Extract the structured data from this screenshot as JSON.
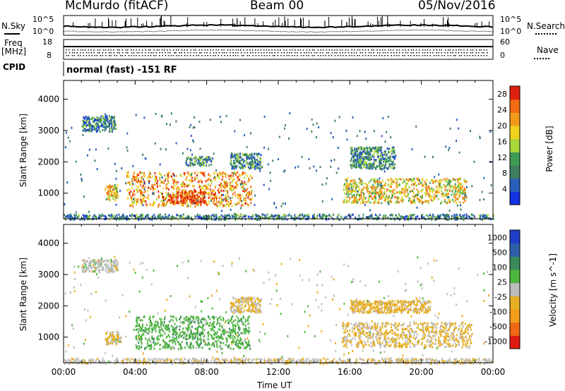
{
  "header": {
    "station": "McMurdo (fitACF)",
    "beam": "Beam 00",
    "date": "05/Nov/2016"
  },
  "top_panels": {
    "nsky_label": "N.Sky",
    "nsearch_label": "N.Search",
    "noise_ticks_left": [
      "10^5",
      "10^0"
    ],
    "noise_ticks_right": [
      "10^5",
      "10^0"
    ],
    "freq_label_line1": "Freq",
    "freq_label_line2": "[MHz]",
    "freq_ticks": [
      "18",
      "8"
    ],
    "nave_label": "Nave",
    "nave_ticks": [
      "60",
      "0"
    ],
    "cpid_label": "CPID",
    "cpid_text": "normal (fast) -151 RF"
  },
  "colors": {
    "power": [
      "#1432e6",
      "#2a5fbd",
      "#3f7f62",
      "#3f9c55",
      "#a9d83b",
      "#f0d21e",
      "#f2991a",
      "#f26a12",
      "#e0200e"
    ],
    "velocity": [
      "#e01b12",
      "#f06812",
      "#f39b1a",
      "#e6ae22",
      "#bdbdbd",
      "#4fb63f",
      "#3a8b5a",
      "#2f5fa8",
      "#1f3fc8"
    ]
  },
  "chart_data": [
    {
      "type": "heatmap",
      "title": "",
      "xlabel": "Time UT",
      "ylabel": "Slant Range [km]",
      "xticks": [
        "00:00",
        "04:00",
        "08:00",
        "12:00",
        "16:00",
        "20:00",
        "00:00"
      ],
      "yticks": [
        "1000",
        "2000",
        "3000",
        "4000"
      ],
      "xlim_hours": [
        0,
        24
      ],
      "ylim_km": [
        180,
        4600
      ],
      "colorbar": {
        "label": "Power [dB]",
        "ticks": [
          "4",
          "8",
          "12",
          "16",
          "20",
          "24",
          "28"
        ],
        "range": [
          0,
          30
        ]
      },
      "echo_regions": [
        {
          "t0": 2.3,
          "t1": 3.0,
          "r0": 800,
          "r1": 1300,
          "value": 18
        },
        {
          "t0": 3.5,
          "t1": 10.5,
          "r0": 600,
          "r1": 1700,
          "value": 22
        },
        {
          "t0": 5.8,
          "t1": 7.9,
          "r0": 700,
          "r1": 1100,
          "value": 27
        },
        {
          "t0": 6.8,
          "t1": 8.3,
          "r0": 1900,
          "r1": 2200,
          "value": 10
        },
        {
          "t0": 1.0,
          "t1": 2.9,
          "r0": 3000,
          "r1": 3500,
          "value": 8
        },
        {
          "t0": 9.3,
          "t1": 11.0,
          "r0": 1800,
          "r1": 2300,
          "value": 9
        },
        {
          "t0": 15.6,
          "t1": 22.5,
          "r0": 700,
          "r1": 1500,
          "value": 18
        },
        {
          "t0": 16.0,
          "t1": 18.5,
          "r0": 1800,
          "r1": 2500,
          "value": 9
        },
        {
          "t0": 0.0,
          "t1": 24.0,
          "r0": 180,
          "r1": 350,
          "value": 8
        }
      ]
    },
    {
      "type": "heatmap",
      "title": "",
      "xlabel": "Time UT",
      "ylabel": "Slant Range [km]",
      "xticks": [
        "00:00",
        "04:00",
        "08:00",
        "12:00",
        "16:00",
        "20:00",
        "00:00"
      ],
      "yticks": [
        "1000",
        "2000",
        "3000",
        "4000"
      ],
      "xlim_hours": [
        0,
        24
      ],
      "ylim_km": [
        180,
        4600
      ],
      "colorbar": {
        "label": "Velocity [m s^-1]",
        "ticks": [
          "1000",
          "500",
          "100",
          "25",
          "-25",
          "-100",
          "-500",
          "-1000"
        ],
        "range": [
          -1000,
          1000
        ]
      },
      "echo_regions": [
        {
          "t0": 4.0,
          "t1": 10.4,
          "r0": 650,
          "r1": 1700,
          "value": 250
        },
        {
          "t0": 2.3,
          "t1": 3.2,
          "r0": 800,
          "r1": 1200,
          "value": -150
        },
        {
          "t0": 1.0,
          "t1": 3.0,
          "r0": 3100,
          "r1": 3500,
          "value": 0
        },
        {
          "t0": 9.3,
          "t1": 11.0,
          "r0": 1800,
          "r1": 2300,
          "value": -120
        },
        {
          "t0": 15.5,
          "t1": 22.8,
          "r0": 700,
          "r1": 1500,
          "value": -150
        },
        {
          "t0": 16.0,
          "t1": 20.5,
          "r0": 1800,
          "r1": 2200,
          "value": -200
        },
        {
          "t0": 0.0,
          "t1": 24.0,
          "r0": 180,
          "r1": 350,
          "value": -60
        }
      ]
    }
  ]
}
